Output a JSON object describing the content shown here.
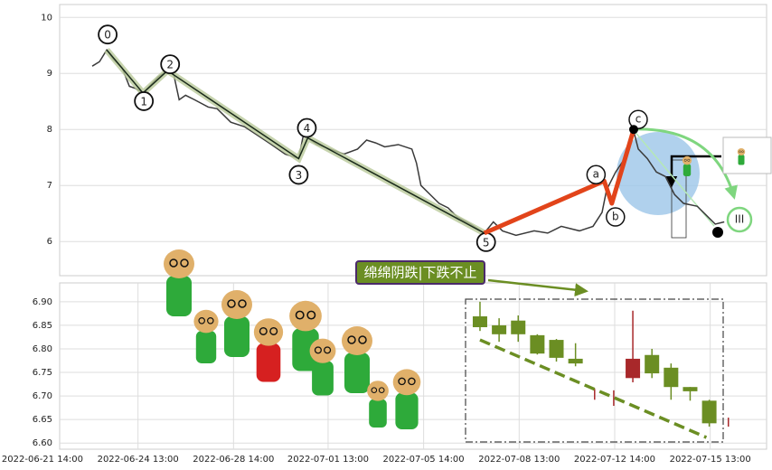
{
  "chart_data": [
    {
      "type": "line",
      "xlim": [
        0,
        74
      ],
      "ylim": [
        5.39,
        10.23
      ],
      "yticks": [
        6,
        7,
        8,
        9,
        10
      ],
      "grid": true,
      "x": [
        3.41,
        4.17,
        4.93,
        5.59,
        6.54,
        7.3,
        7.96,
        8.72,
        9.38,
        10.33,
        11.28,
        11.94,
        12.51,
        13.18,
        14.12,
        15.55,
        16.49,
        17.91,
        19.34,
        20.76,
        22.18,
        23.6,
        25.02,
        25.5,
        25.97,
        26.92,
        28.34,
        29.76,
        31.18,
        32.13,
        33.08,
        34.03,
        35.45,
        36.87,
        37.35,
        37.82,
        38.77,
        39.72,
        40.66,
        41.61,
        43.03,
        44.45,
        45.4,
        46.35,
        47.77,
        49.67,
        51.09,
        52.51,
        54.41,
        55.83,
        56.78,
        57.25,
        58.2,
        59.15,
        60.09,
        60.57,
        61.52,
        62.46,
        63.41,
        64.36,
        65.31,
        66.73,
        67.68,
        68.63,
        69.57
      ],
      "series": [
        {
          "color": "#3a3a3a",
          "values": [
            9.13,
            9.21,
            9.42,
            9.26,
            9.1,
            8.77,
            8.73,
            8.65,
            8.77,
            8.94,
            9.05,
            8.98,
            8.53,
            8.61,
            8.53,
            8.4,
            8.37,
            8.13,
            8.05,
            7.89,
            7.73,
            7.56,
            7.48,
            7.89,
            7.85,
            7.73,
            7.65,
            7.56,
            7.65,
            7.81,
            7.76,
            7.69,
            7.73,
            7.65,
            7.4,
            7.0,
            6.84,
            6.68,
            6.6,
            6.44,
            6.31,
            6.15,
            6.35,
            6.19,
            6.11,
            6.19,
            6.15,
            6.27,
            6.19,
            6.27,
            6.52,
            6.92,
            7.24,
            7.48,
            7.97,
            7.65,
            7.48,
            7.24,
            7.16,
            6.84,
            6.68,
            6.63,
            6.47,
            6.31,
            6.35
          ]
        }
      ],
      "wave": {
        "labels": [
          "0",
          "1",
          "2",
          "3",
          "4",
          "5"
        ],
        "x": [
          4.93,
          8.72,
          11.28,
          25.02,
          25.97,
          44.45
        ],
        "y": [
          9.42,
          8.65,
          9.05,
          7.48,
          7.85,
          6.15
        ],
        "color": "#1a2a1a"
      },
      "abc": {
        "labels": [
          "a",
          "b",
          "c"
        ],
        "x": [
          44.45,
          57.0,
          57.8,
          60.09
        ],
        "y": [
          6.15,
          7.08,
          6.68,
          8.0
        ],
        "color": "#e2441a"
      },
      "marker": "III"
    },
    {
      "type": "candlestick",
      "xlim": [
        0,
        74
      ],
      "ylim": [
        6.587,
        6.94
      ],
      "yticks": [
        {
          "value": 6.6,
          "label": "6.60"
        },
        {
          "value": 6.65,
          "label": "6.65"
        },
        {
          "value": 6.7,
          "label": "6.70"
        },
        {
          "value": 6.75,
          "label": "6.75"
        },
        {
          "value": 6.8,
          "label": "6.80"
        },
        {
          "value": 6.85,
          "label": "6.85"
        },
        {
          "value": 6.9,
          "label": "6.90"
        }
      ],
      "xticks": [
        {
          "value": -1.8,
          "label": "2022-06-21 14:00"
        },
        {
          "value": 8.2,
          "label": "2022-06-24 13:00"
        },
        {
          "value": 18.2,
          "label": "2022-06-28 14:00"
        },
        {
          "value": 28.1,
          "label": "2022-07-01 13:00"
        },
        {
          "value": 38.1,
          "label": "2022-07-05 14:00"
        },
        {
          "value": 48.1,
          "label": "2022-07-08 13:00"
        },
        {
          "value": 58.1,
          "label": "2022-07-12 14:00"
        },
        {
          "value": 68.1,
          "label": "2022-07-15 13:00"
        }
      ],
      "grid": true,
      "up_color": "#a8282a",
      "down_color": "#6b8e23",
      "x": [
        44,
        46,
        48,
        50,
        52,
        54,
        56,
        58,
        60,
        62,
        64,
        66,
        68,
        70
      ],
      "open": [
        6.869,
        6.85,
        6.86,
        6.829,
        6.819,
        6.779,
        6.7,
        6.697,
        6.738,
        6.787,
        6.76,
        6.719,
        6.69,
        6.645
      ],
      "close": [
        6.846,
        6.831,
        6.831,
        6.79,
        6.781,
        6.769,
        6.7,
        6.697,
        6.779,
        6.748,
        6.719,
        6.71,
        6.642,
        6.645
      ],
      "high": [
        6.9,
        6.865,
        6.871,
        6.831,
        6.821,
        6.812,
        6.715,
        6.712,
        6.881,
        6.8,
        6.769,
        6.719,
        6.692,
        6.654
      ],
      "low": [
        6.838,
        6.815,
        6.815,
        6.788,
        6.773,
        6.763,
        6.692,
        6.679,
        6.729,
        6.738,
        6.692,
        6.69,
        6.635,
        6.635
      ],
      "trend": {
        "x": [
          44,
          67.7
        ],
        "y": [
          6.819,
          6.612
        ],
        "color": "#6b8e23"
      }
    }
  ],
  "annotation": "绵绵阴跌|下跌不止"
}
